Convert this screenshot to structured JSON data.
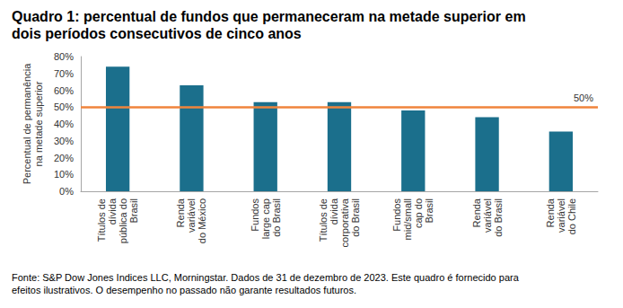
{
  "chart_data": {
    "type": "bar",
    "title": "Quadro 1: percentual de fundos que permaneceram na metade superior em dois períodos consecutivos de cinco anos",
    "y_label": "Percentual de permanência na metade superior",
    "source": "Fonte: S&P Dow Jones Indices LLC, Morningstar. Dados de 31 de dezembro de 2023. Este quadro é fornecido para efeitos ilustrativos. O desempenho no passado não garante resultados futuros.",
    "categories": [
      "Títulos de dívida pública do Brasil",
      "Renda variável do México",
      "Fundos large cap do Brasil",
      "Títulos de dívida corporativa do Brasil",
      "Fundos mid/small cap do Brasil",
      "Renda variável do Brasil",
      "Renda variável do Chile"
    ],
    "values": [
      74,
      63,
      53,
      53,
      48,
      44,
      35.5
    ],
    "color": "#1b6f8c",
    "ylim": [
      0,
      80
    ],
    "yticks": [
      {
        "value": 0,
        "label": "0%"
      },
      {
        "value": 10,
        "label": "10%"
      },
      {
        "value": 20,
        "label": "20%"
      },
      {
        "value": 30,
        "label": "30%"
      },
      {
        "value": 40,
        "label": "40%"
      },
      {
        "value": 50,
        "label": "50%"
      },
      {
        "value": 60,
        "label": "60%"
      },
      {
        "value": 70,
        "label": "70%"
      },
      {
        "value": 80,
        "label": "80%"
      }
    ],
    "grid": false,
    "annotations": [
      {
        "text": "50%",
        "y": 50,
        "color": "#f0843c"
      }
    ]
  }
}
